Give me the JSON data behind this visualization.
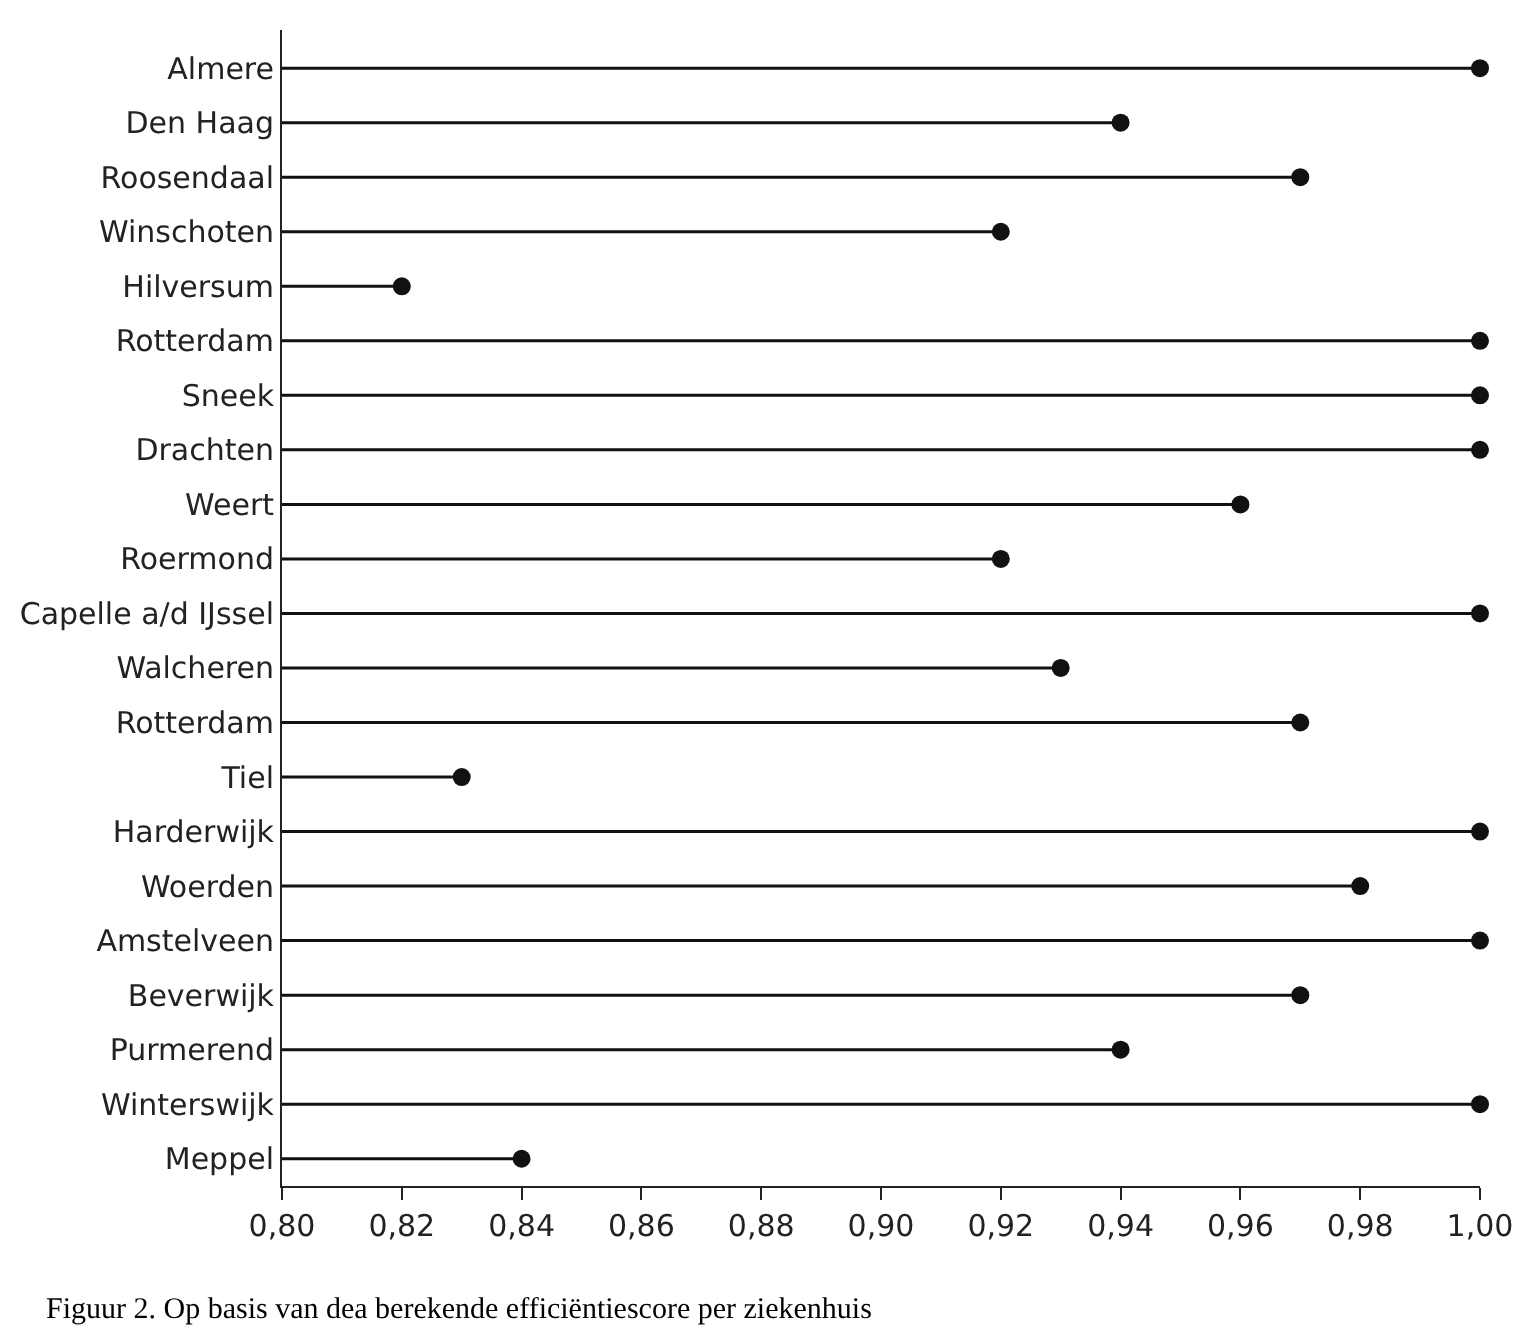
{
  "chart_data": {
    "type": "lollipop",
    "categories": [
      "Almere",
      "Den Haag",
      "Roosendaal",
      "Winschoten",
      "Hilversum",
      "Rotterdam",
      "Sneek",
      "Drachten",
      "Weert",
      "Roermond",
      "Capelle a/d IJssel",
      "Walcheren",
      "Rotterdam",
      "Tiel",
      "Harderwijk",
      "Woerden",
      "Amstelveen",
      "Beverwijk",
      "Purmerend",
      "Winterswijk",
      "Meppel"
    ],
    "values": [
      1.0,
      0.94,
      0.97,
      0.92,
      0.82,
      1.0,
      1.0,
      1.0,
      0.96,
      0.92,
      1.0,
      0.93,
      0.97,
      0.83,
      1.0,
      0.98,
      1.0,
      0.97,
      0.94,
      1.0,
      0.84
    ],
    "orientation": "horizontal",
    "color": "#111111",
    "marker": "circle",
    "xlim": [
      0.8,
      1.0
    ],
    "xticks": [
      {
        "value": 0.8,
        "label": "0,80"
      },
      {
        "value": 0.82,
        "label": "0,82"
      },
      {
        "value": 0.84,
        "label": "0,84"
      },
      {
        "value": 0.86,
        "label": "0,86"
      },
      {
        "value": 0.88,
        "label": "0,88"
      },
      {
        "value": 0.9,
        "label": "0,90"
      },
      {
        "value": 0.92,
        "label": "0,92"
      },
      {
        "value": 0.94,
        "label": "0,94"
      },
      {
        "value": 0.96,
        "label": "0,96"
      },
      {
        "value": 0.98,
        "label": "0,98"
      },
      {
        "value": 1.0,
        "label": "1,00"
      }
    ],
    "annotations": [
      "Figuur 2. Op basis van dea berekende efficiëntiescore per ziekenhuis"
    ]
  }
}
